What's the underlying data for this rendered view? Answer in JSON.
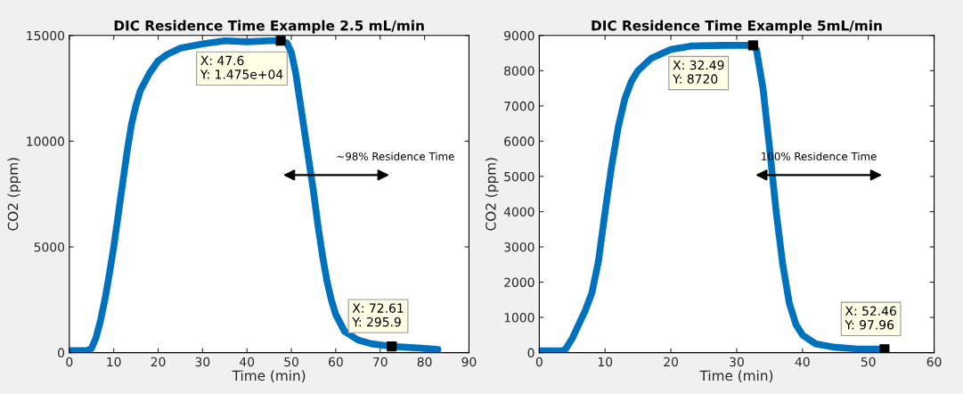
{
  "chart_data": [
    {
      "type": "line",
      "title": "DIC Residence Time Example 2.5 mL/min",
      "xlabel": "Time (min)",
      "ylabel": "CO2 (ppm)",
      "xlim": [
        0,
        90
      ],
      "xticks": [
        0,
        10,
        20,
        30,
        40,
        50,
        60,
        70,
        80,
        90
      ],
      "ylim": [
        0,
        15000
      ],
      "yticks": [
        0,
        5000,
        10000,
        15000
      ],
      "grid": false,
      "legend": false,
      "series": [
        {
          "color": "#0072bd",
          "x": [
            0,
            4,
            5,
            6,
            7,
            8,
            9,
            10,
            11,
            12,
            13,
            14,
            15,
            16,
            18,
            20,
            22,
            25,
            30,
            35,
            40,
            45,
            47.6,
            49,
            50,
            51,
            52,
            53,
            54,
            55,
            56,
            57,
            58,
            59,
            60,
            62,
            65,
            68,
            72.61,
            76,
            80,
            83
          ],
          "values": [
            100,
            100,
            200,
            700,
            1500,
            2500,
            3700,
            5000,
            6500,
            8000,
            9500,
            10800,
            11700,
            12400,
            13200,
            13800,
            14100,
            14400,
            14600,
            14750,
            14700,
            14750,
            14750,
            14650,
            14200,
            13200,
            11800,
            10400,
            9000,
            7600,
            6000,
            4600,
            3400,
            2500,
            1800,
            1000,
            600,
            420,
            300,
            250,
            200,
            150
          ]
        }
      ],
      "annotations": [
        "~98% Residence Time",
        {
          "text": "X: 47.6\nY: 1.475e+04",
          "x": 47.6,
          "y": 14750
        },
        {
          "text": "X: 72.61\nY: 295.9",
          "x": 72.61,
          "y": 295.9
        }
      ]
    },
    {
      "type": "line",
      "title": "DIC Residence Time Example 5mL/min",
      "xlabel": "Time (min)",
      "ylabel": "CO2 (ppm)",
      "xlim": [
        0,
        60
      ],
      "xticks": [
        0,
        10,
        20,
        30,
        40,
        50,
        60
      ],
      "ylim": [
        0,
        9000
      ],
      "yticks": [
        0,
        1000,
        2000,
        3000,
        4000,
        5000,
        6000,
        7000,
        8000,
        9000
      ],
      "grid": false,
      "legend": false,
      "series": [
        {
          "color": "#0072bd",
          "x": [
            0,
            3.5,
            4,
            5,
            6,
            7,
            8,
            9,
            10,
            11,
            12,
            13,
            14,
            15,
            17,
            20,
            23,
            28,
            32.49,
            33,
            34,
            35,
            36,
            37,
            38,
            39,
            40,
            42,
            45,
            48,
            52.46
          ],
          "values": [
            50,
            50,
            100,
            400,
            800,
            1200,
            1700,
            2600,
            4000,
            5300,
            6400,
            7200,
            7700,
            8000,
            8350,
            8600,
            8700,
            8720,
            8720,
            8600,
            7500,
            5800,
            4000,
            2500,
            1400,
            800,
            500,
            250,
            150,
            110,
            100
          ]
        }
      ],
      "annotations": [
        "100% Residence Time",
        {
          "text": "X: 32.49\nY: 8720",
          "x": 32.49,
          "y": 8720
        },
        {
          "text": "X: 52.46\nY: 97.96",
          "x": 52.46,
          "y": 97.96
        }
      ]
    }
  ]
}
